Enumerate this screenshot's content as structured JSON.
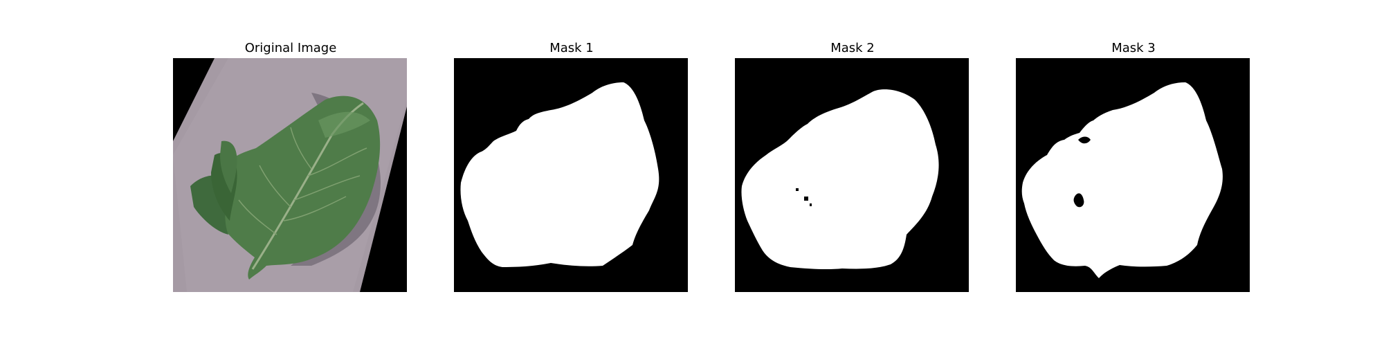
{
  "figure": {
    "panels": [
      {
        "title": "Original Image",
        "kind": "photo-leaf"
      },
      {
        "title": "Mask 1",
        "kind": "mask"
      },
      {
        "title": "Mask 2",
        "kind": "mask"
      },
      {
        "title": "Mask 3",
        "kind": "mask"
      }
    ]
  },
  "colors": {
    "background": "#ffffff",
    "mask_background": "#000000",
    "mask_foreground": "#ffffff",
    "photo_backdrop": "#a59aa4",
    "leaf_dark": "#3f6a3d",
    "leaf_mid": "#4f7c49",
    "leaf_light": "#6a9561"
  }
}
